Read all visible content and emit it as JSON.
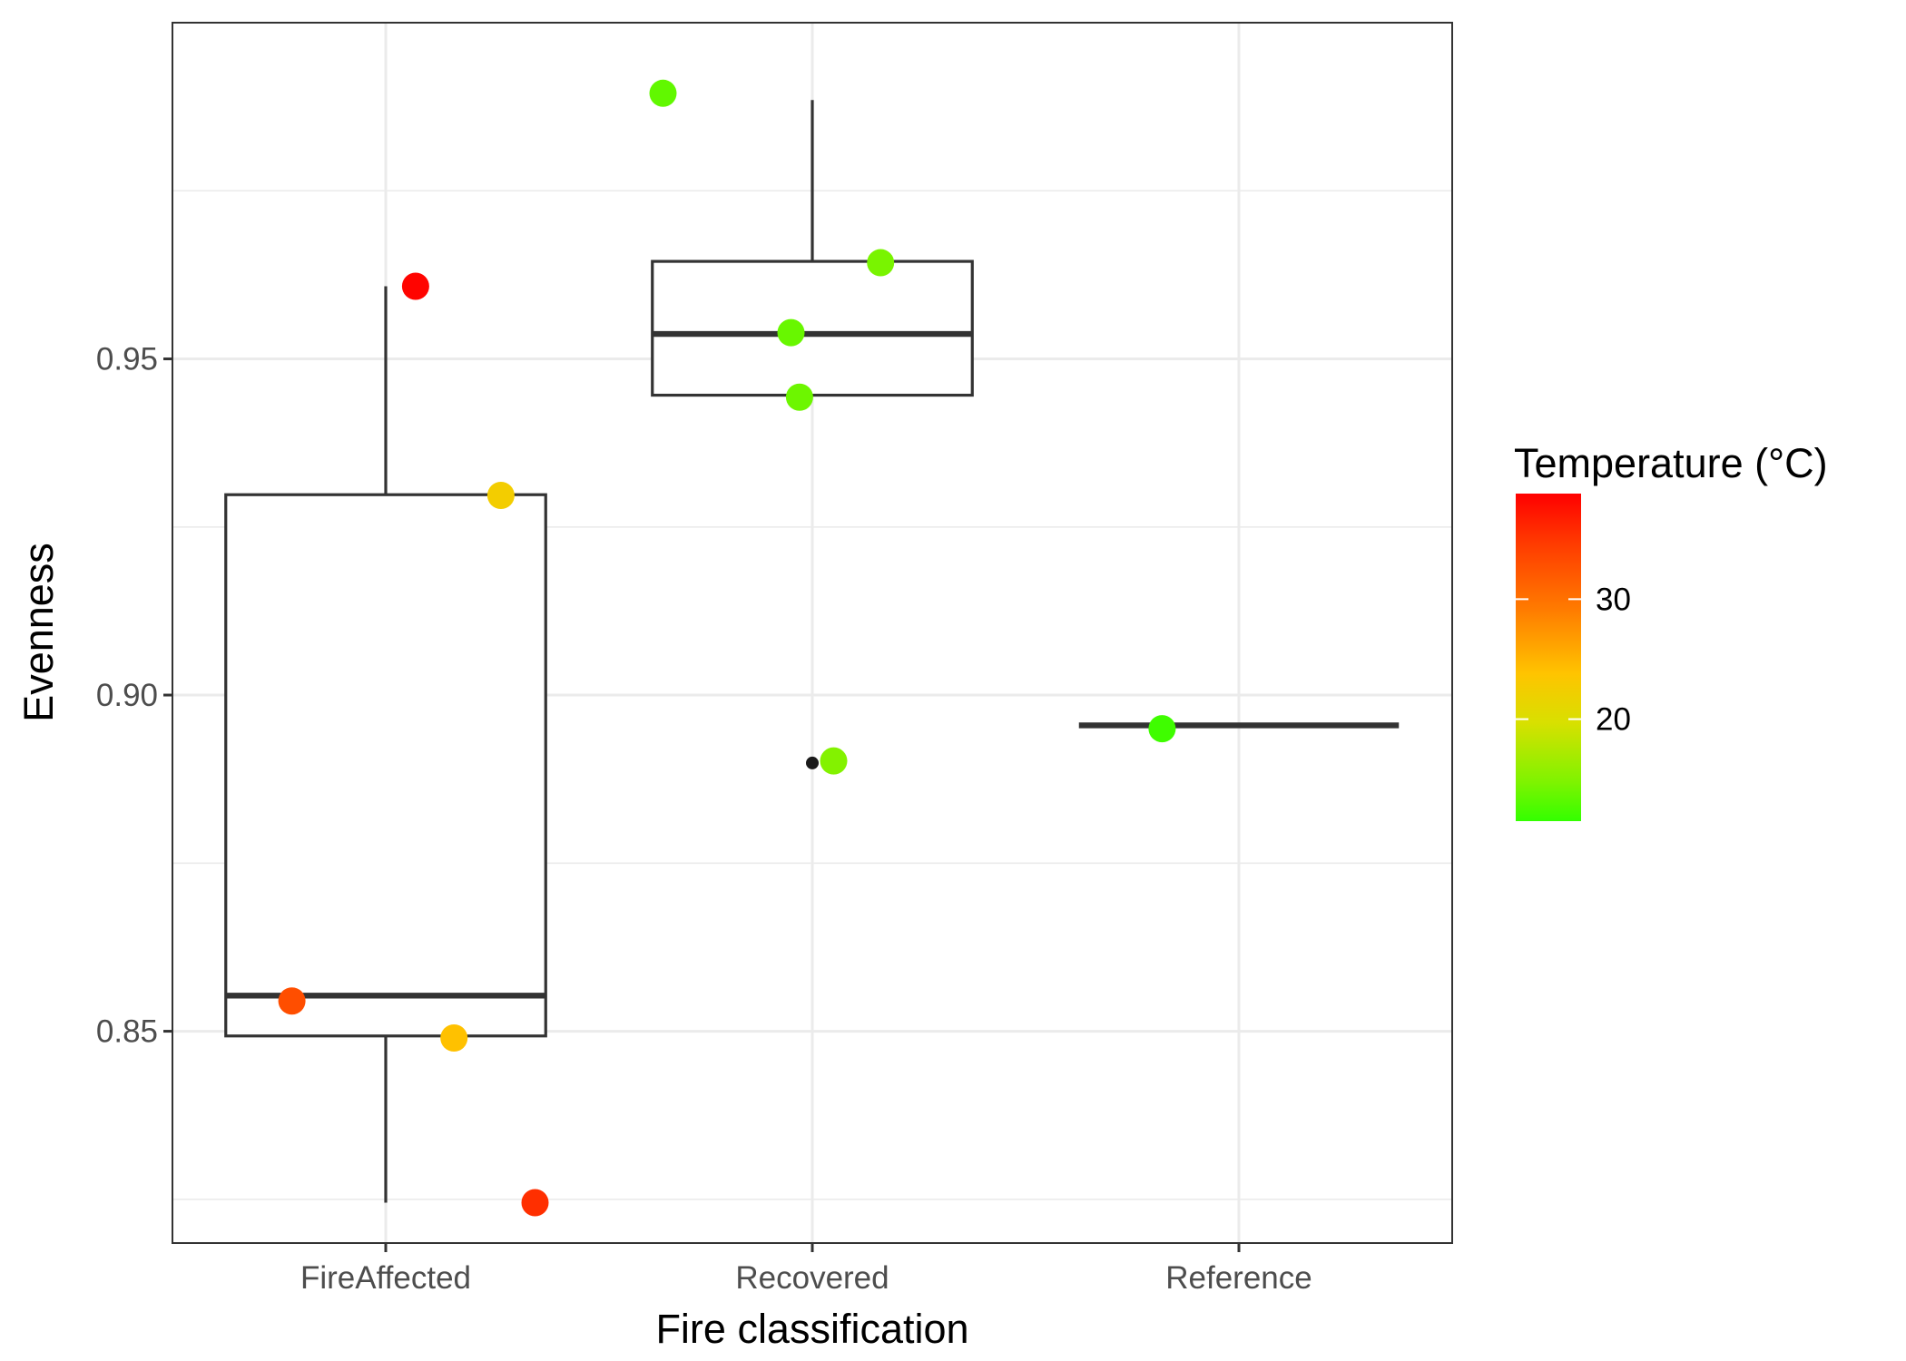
{
  "chart_data": {
    "type": "boxplot",
    "xlabel": "Fire classification",
    "ylabel": "Evenness",
    "categories": [
      "FireAffected",
      "Recovered",
      "Reference"
    ],
    "ylim": [
      0.8185,
      1.0
    ],
    "y_ticks": [
      0.85,
      0.9,
      0.95
    ],
    "y_tick_labels": [
      "0.85",
      "0.90",
      "0.95"
    ],
    "grid": true,
    "boxes": [
      {
        "category": "FireAffected",
        "whisker_low": 0.8245,
        "q1": 0.8493,
        "median": 0.8553,
        "q3": 0.9298,
        "whisker_high": 0.9608,
        "outliers": []
      },
      {
        "category": "Recovered",
        "whisker_low": 0.9446,
        "q1": 0.9446,
        "median": 0.9537,
        "q3": 0.9645,
        "whisker_high": 0.9885,
        "outliers": [
          0.8899
        ]
      },
      {
        "category": "Reference",
        "whisker_low": 0.8955,
        "q1": 0.8955,
        "median": 0.8955,
        "q3": 0.8955,
        "whisker_high": 0.8955,
        "outliers": []
      }
    ],
    "points": [
      {
        "category": "FireAffected",
        "jitter": 0.07,
        "y": 0.9608,
        "temperature": 38.5
      },
      {
        "category": "FireAffected",
        "jitter": 0.27,
        "y": 0.9297,
        "temperature": 22.5
      },
      {
        "category": "FireAffected",
        "jitter": -0.22,
        "y": 0.8545,
        "temperature": 33.0
      },
      {
        "category": "FireAffected",
        "jitter": 0.16,
        "y": 0.849,
        "temperature": 24.0
      },
      {
        "category": "FireAffected",
        "jitter": 0.35,
        "y": 0.8245,
        "temperature": 35.5
      },
      {
        "category": "Recovered",
        "jitter": -0.35,
        "y": 0.9895,
        "temperature": 13.5
      },
      {
        "category": "Recovered",
        "jitter": 0.16,
        "y": 0.9643,
        "temperature": 14.5
      },
      {
        "category": "Recovered",
        "jitter": -0.05,
        "y": 0.9539,
        "temperature": 13.8
      },
      {
        "category": "Recovered",
        "jitter": -0.03,
        "y": 0.9443,
        "temperature": 14.0
      },
      {
        "category": "Recovered",
        "jitter": 0.05,
        "y": 0.8902,
        "temperature": 15.0
      },
      {
        "category": "Reference",
        "jitter": -0.18,
        "y": 0.895,
        "temperature": 12.0
      }
    ],
    "legend": {
      "title": "Temperature (°C)",
      "placement": "right",
      "range": [
        11.5,
        38.8
      ],
      "ticks": [
        20,
        30
      ],
      "tick_labels": [
        "20",
        "30"
      ],
      "colors": {
        "low": "#33ff00",
        "mid": "#ffd000",
        "high": "#ff0000"
      }
    }
  }
}
